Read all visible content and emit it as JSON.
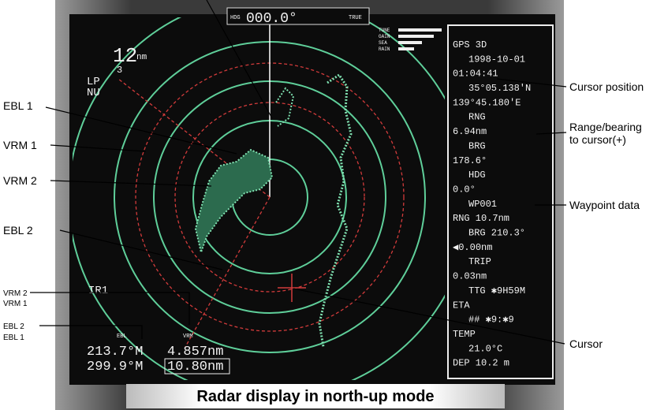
{
  "caption": "Radar display in north-up mode",
  "callouts_left": [
    "EBL 1",
    "VRM 1",
    "VRM 2",
    "EBL 2",
    "VRM 2",
    "VRM 1",
    "EBL 2",
    "EBL 1"
  ],
  "callouts_right": [
    "Cursor position",
    "Range/bearing",
    "to cursor(+)",
    "Waypoint data",
    "Cursor"
  ],
  "screen": {
    "range": "12",
    "range_unit": "nm",
    "ring_count": "3",
    "modes": [
      "LP",
      "NU"
    ],
    "heading_label": "HDG",
    "heading": "000.0°",
    "heading_ref": "TRUE",
    "controls": [
      "TUNE",
      "GAIN",
      "SEA",
      "RAIN"
    ],
    "interference": "IR1",
    "ebl_label": "EBL",
    "vrm_label": "VRM",
    "ebl_values": [
      "213.7°M",
      "299.9°M"
    ],
    "vrm_values": [
      "4.857nm",
      "10.80nm"
    ]
  },
  "panel": {
    "lines": [
      "GPS 3D",
      "1998-10-01",
      "01:04:41",
      "35°05.138'N",
      "139°45.180'E",
      "RNG",
      "6.94nm",
      "BRG",
      "178.6°",
      "HDG",
      "0.0°",
      "WP001",
      "RNG 10.7nm",
      "BRG 210.3°",
      "◀0.00nm",
      "TRIP",
      "0.03nm",
      "TTG ✱9H59M",
      "ETA",
      "## ✱9:✱9",
      "TEMP",
      "21.0°C",
      "DEP 10.2 m"
    ]
  }
}
